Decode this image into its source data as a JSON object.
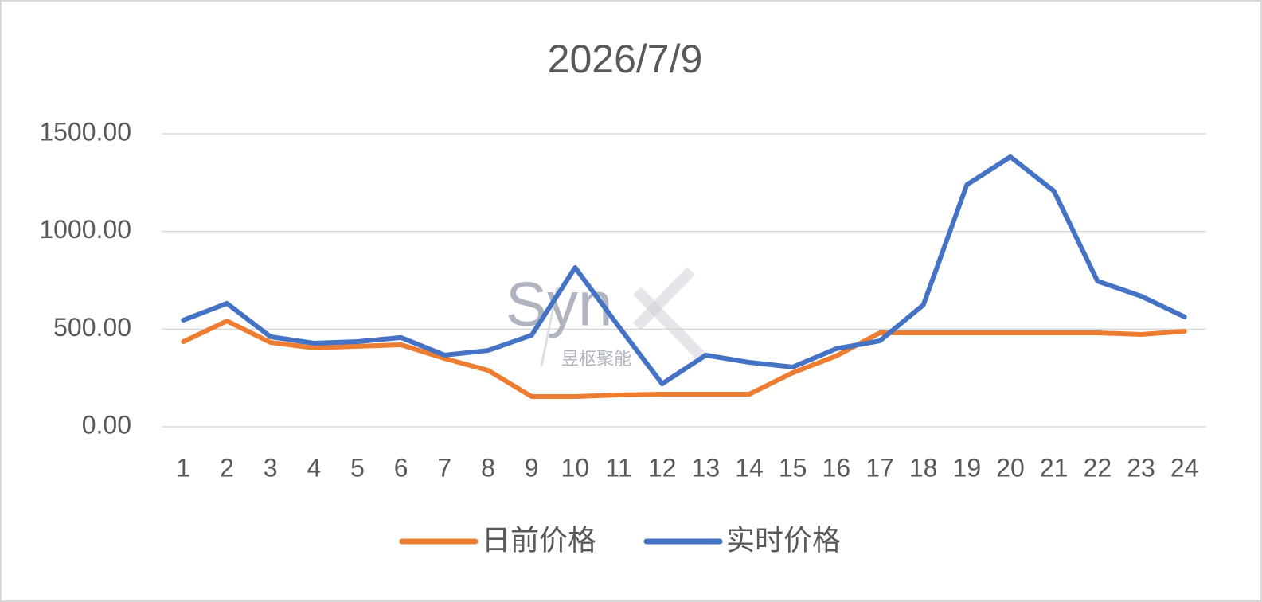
{
  "chart_data": {
    "type": "line",
    "title": "2026/7/9",
    "categories": [
      "1",
      "2",
      "3",
      "4",
      "5",
      "6",
      "7",
      "8",
      "9",
      "10",
      "11",
      "12",
      "13",
      "14",
      "15",
      "16",
      "17",
      "18",
      "19",
      "20",
      "21",
      "22",
      "23",
      "24"
    ],
    "series": [
      {
        "name": "日前价格",
        "color": "#ed7d31",
        "values": [
          436,
          542,
          432,
          404,
          412,
          420,
          350,
          289,
          155,
          155,
          163,
          167,
          167,
          167,
          277,
          363,
          481,
          481,
          481,
          481,
          481,
          481,
          473,
          489
        ]
      },
      {
        "name": "实时价格",
        "color": "#4472c4",
        "values": [
          546,
          632,
          461,
          428,
          436,
          457,
          367,
          391,
          469,
          815,
          514,
          220,
          367,
          330,
          306,
          400,
          440,
          624,
          1239,
          1382,
          1207,
          746,
          669,
          563
        ]
      }
    ],
    "ylim": [
      0,
      1500
    ],
    "yticks": [
      {
        "value": 0,
        "label": "0.00"
      },
      {
        "value": 500,
        "label": "500.00"
      },
      {
        "value": 1000,
        "label": "1000.00"
      },
      {
        "value": 1500,
        "label": "1500.00"
      }
    ],
    "grid": true,
    "legend": "bottom",
    "watermark": {
      "text": "Syn",
      "subtext": "昱枢聚能"
    }
  }
}
